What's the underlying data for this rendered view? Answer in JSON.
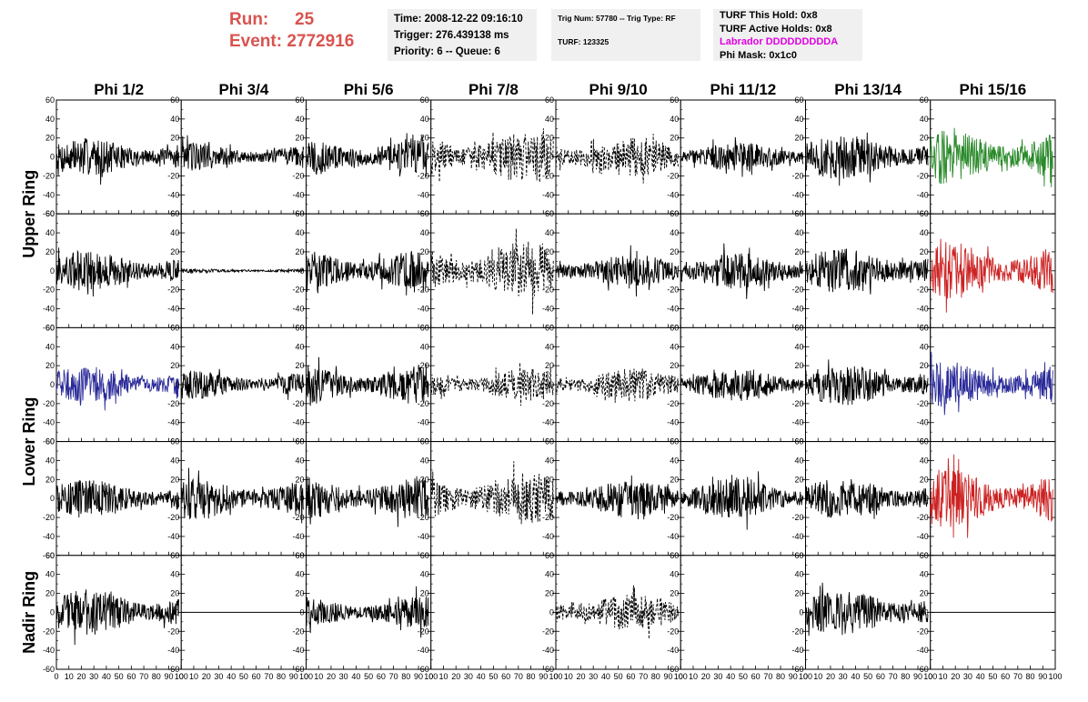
{
  "header": {
    "run_label": "Run:",
    "run_value": "25",
    "event_label": "Event:",
    "event_value": "2772916"
  },
  "info_time": {
    "time": "Time: 2008-12-22 09:16:10",
    "trigger": "Trigger: 276.439138 ms",
    "priority": "Priority: 6 -- Queue: 6"
  },
  "info_trig": {
    "trig": "Trig Num: 57780 -- Trig Type: RF",
    "turf": "TURF: 123325"
  },
  "info_turf": {
    "this_hold": "TURF This Hold: 0x8",
    "active_holds": "TURF Active Holds: 0x8",
    "labrador": "Labrador DDDDDDDDDA",
    "phi_mask": "Phi Mask: 0x1c0"
  },
  "colors": {
    "black": "#000000",
    "green": "#2a8a2a",
    "red": "#cc2222",
    "blue": "#2a2a99",
    "labrador": "#e000e0",
    "run": "#d9534f"
  },
  "chart_data": {
    "type": "line",
    "columns": [
      "Phi 1/2",
      "Phi 3/4",
      "Phi 5/6",
      "Phi 7/8",
      "Phi 9/10",
      "Phi 11/12",
      "Phi 13/14",
      "Phi 15/16"
    ],
    "rows": [
      "Upper Ring",
      "Lower Ring",
      "Nadir Ring"
    ],
    "subplot_rows": 5,
    "row_groups": [
      {
        "name": "Upper Ring",
        "subplots": [
          0,
          1
        ]
      },
      {
        "name": "Lower Ring",
        "subplots": [
          2,
          3
        ]
      },
      {
        "name": "Nadir Ring",
        "subplots": [
          4
        ]
      }
    ],
    "xlim": [
      0,
      100
    ],
    "ylim": [
      -60,
      60
    ],
    "x_ticks": [
      "0",
      "10",
      "20",
      "30",
      "40",
      "50",
      "60",
      "70",
      "80",
      "90",
      "100"
    ],
    "y_ticks": [
      "60",
      "40",
      "20",
      "0",
      "-20",
      "-40",
      "-60"
    ],
    "trace_length_ns": 100,
    "panels": [
      [
        {
          "style": "solid",
          "color": "black",
          "amp": 18
        },
        {
          "style": "solid",
          "color": "black",
          "amp": 14
        },
        {
          "style": "solid",
          "color": "black",
          "amp": 20
        },
        {
          "style": "dashed",
          "color": "black",
          "amp": 26
        },
        {
          "style": "dashed",
          "color": "black",
          "amp": 20
        },
        {
          "style": "solid",
          "color": "black",
          "amp": 14
        },
        {
          "style": "solid",
          "color": "black",
          "amp": 22
        },
        {
          "style": "solid",
          "color": "green",
          "amp": 26
        }
      ],
      [
        {
          "style": "solid",
          "color": "black",
          "amp": 20
        },
        {
          "style": "solid",
          "color": "black",
          "amp": 2
        },
        {
          "style": "solid",
          "color": "black",
          "amp": 22
        },
        {
          "style": "dashed",
          "color": "black",
          "amp": 28
        },
        {
          "style": "solid",
          "color": "black",
          "amp": 16
        },
        {
          "style": "solid",
          "color": "black",
          "amp": 18
        },
        {
          "style": "solid",
          "color": "black",
          "amp": 22
        },
        {
          "style": "solid",
          "color": "red",
          "amp": 28
        }
      ],
      [
        {
          "style": "solid",
          "color": "blue",
          "amp": 18
        },
        {
          "style": "solid",
          "color": "black",
          "amp": 14
        },
        {
          "style": "solid",
          "color": "black",
          "amp": 20
        },
        {
          "style": "dashed",
          "color": "black",
          "amp": 16
        },
        {
          "style": "dashed",
          "color": "black",
          "amp": 16
        },
        {
          "style": "solid",
          "color": "black",
          "amp": 16
        },
        {
          "style": "solid",
          "color": "black",
          "amp": 20
        },
        {
          "style": "solid",
          "color": "blue",
          "amp": 22
        }
      ],
      [
        {
          "style": "solid",
          "color": "black",
          "amp": 18
        },
        {
          "style": "solid",
          "color": "black",
          "amp": 20
        },
        {
          "style": "solid",
          "color": "black",
          "amp": 22
        },
        {
          "style": "dashed",
          "color": "black",
          "amp": 26
        },
        {
          "style": "solid",
          "color": "black",
          "amp": 18
        },
        {
          "style": "solid",
          "color": "black",
          "amp": 20
        },
        {
          "style": "solid",
          "color": "black",
          "amp": 20
        },
        {
          "style": "solid",
          "color": "red",
          "amp": 28
        }
      ],
      [
        {
          "style": "solid",
          "color": "black",
          "amp": 22
        },
        {
          "style": "flat",
          "color": "black",
          "amp": 0
        },
        {
          "style": "solid",
          "color": "black",
          "amp": 16
        },
        {
          "style": "none",
          "color": "black",
          "amp": 0
        },
        {
          "style": "dashed",
          "color": "black",
          "amp": 18
        },
        {
          "style": "none",
          "color": "black",
          "amp": 0
        },
        {
          "style": "solid",
          "color": "black",
          "amp": 22
        },
        {
          "style": "flat",
          "color": "black",
          "amp": 0
        }
      ]
    ]
  }
}
